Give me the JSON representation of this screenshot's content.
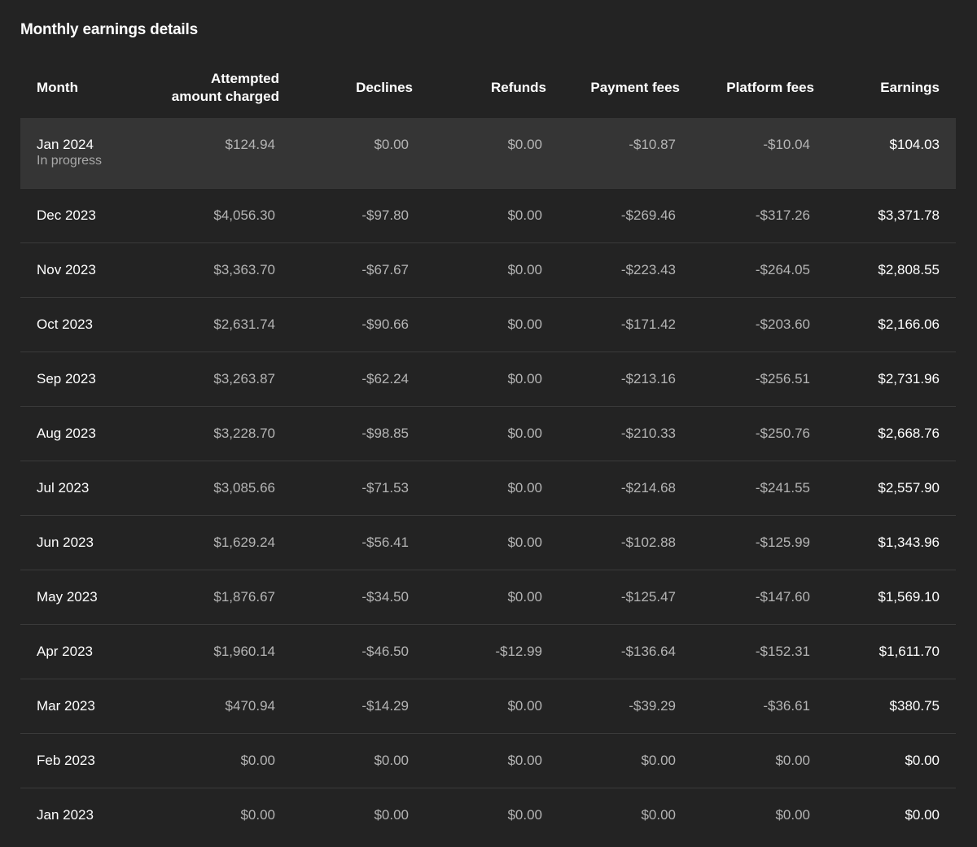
{
  "title": "Monthly earnings details",
  "table": {
    "columns": [
      "Month",
      "Attempted amount charged",
      "Declines",
      "Refunds",
      "Payment fees",
      "Platform fees",
      "Earnings"
    ],
    "rows": [
      {
        "month": "Jan 2024",
        "note": "In progress",
        "cells": [
          "$124.94",
          "$0.00",
          "$0.00",
          "-$10.87",
          "-$10.04",
          "$104.03"
        ]
      },
      {
        "month": "Dec 2023",
        "cells": [
          "$4,056.30",
          "-$97.80",
          "$0.00",
          "-$269.46",
          "-$317.26",
          "$3,371.78"
        ]
      },
      {
        "month": "Nov 2023",
        "cells": [
          "$3,363.70",
          "-$67.67",
          "$0.00",
          "-$223.43",
          "-$264.05",
          "$2,808.55"
        ]
      },
      {
        "month": "Oct 2023",
        "cells": [
          "$2,631.74",
          "-$90.66",
          "$0.00",
          "-$171.42",
          "-$203.60",
          "$2,166.06"
        ]
      },
      {
        "month": "Sep 2023",
        "cells": [
          "$3,263.87",
          "-$62.24",
          "$0.00",
          "-$213.16",
          "-$256.51",
          "$2,731.96"
        ]
      },
      {
        "month": "Aug 2023",
        "cells": [
          "$3,228.70",
          "-$98.85",
          "$0.00",
          "-$210.33",
          "-$250.76",
          "$2,668.76"
        ]
      },
      {
        "month": "Jul 2023",
        "cells": [
          "$3,085.66",
          "-$71.53",
          "$0.00",
          "-$214.68",
          "-$241.55",
          "$2,557.90"
        ]
      },
      {
        "month": "Jun 2023",
        "cells": [
          "$1,629.24",
          "-$56.41",
          "$0.00",
          "-$102.88",
          "-$125.99",
          "$1,343.96"
        ]
      },
      {
        "month": "May 2023",
        "cells": [
          "$1,876.67",
          "-$34.50",
          "$0.00",
          "-$125.47",
          "-$147.60",
          "$1,569.10"
        ]
      },
      {
        "month": "Apr 2023",
        "cells": [
          "$1,960.14",
          "-$46.50",
          "-$12.99",
          "-$136.64",
          "-$152.31",
          "$1,611.70"
        ]
      },
      {
        "month": "Mar 2023",
        "cells": [
          "$470.94",
          "-$14.29",
          "$0.00",
          "-$39.29",
          "-$36.61",
          "$380.75"
        ]
      },
      {
        "month": "Feb 2023",
        "cells": [
          "$0.00",
          "$0.00",
          "$0.00",
          "$0.00",
          "$0.00",
          "$0.00"
        ]
      },
      {
        "month": "Jan 2023",
        "cells": [
          "$0.00",
          "$0.00",
          "$0.00",
          "$0.00",
          "$0.00",
          "$0.00"
        ]
      }
    ]
  }
}
